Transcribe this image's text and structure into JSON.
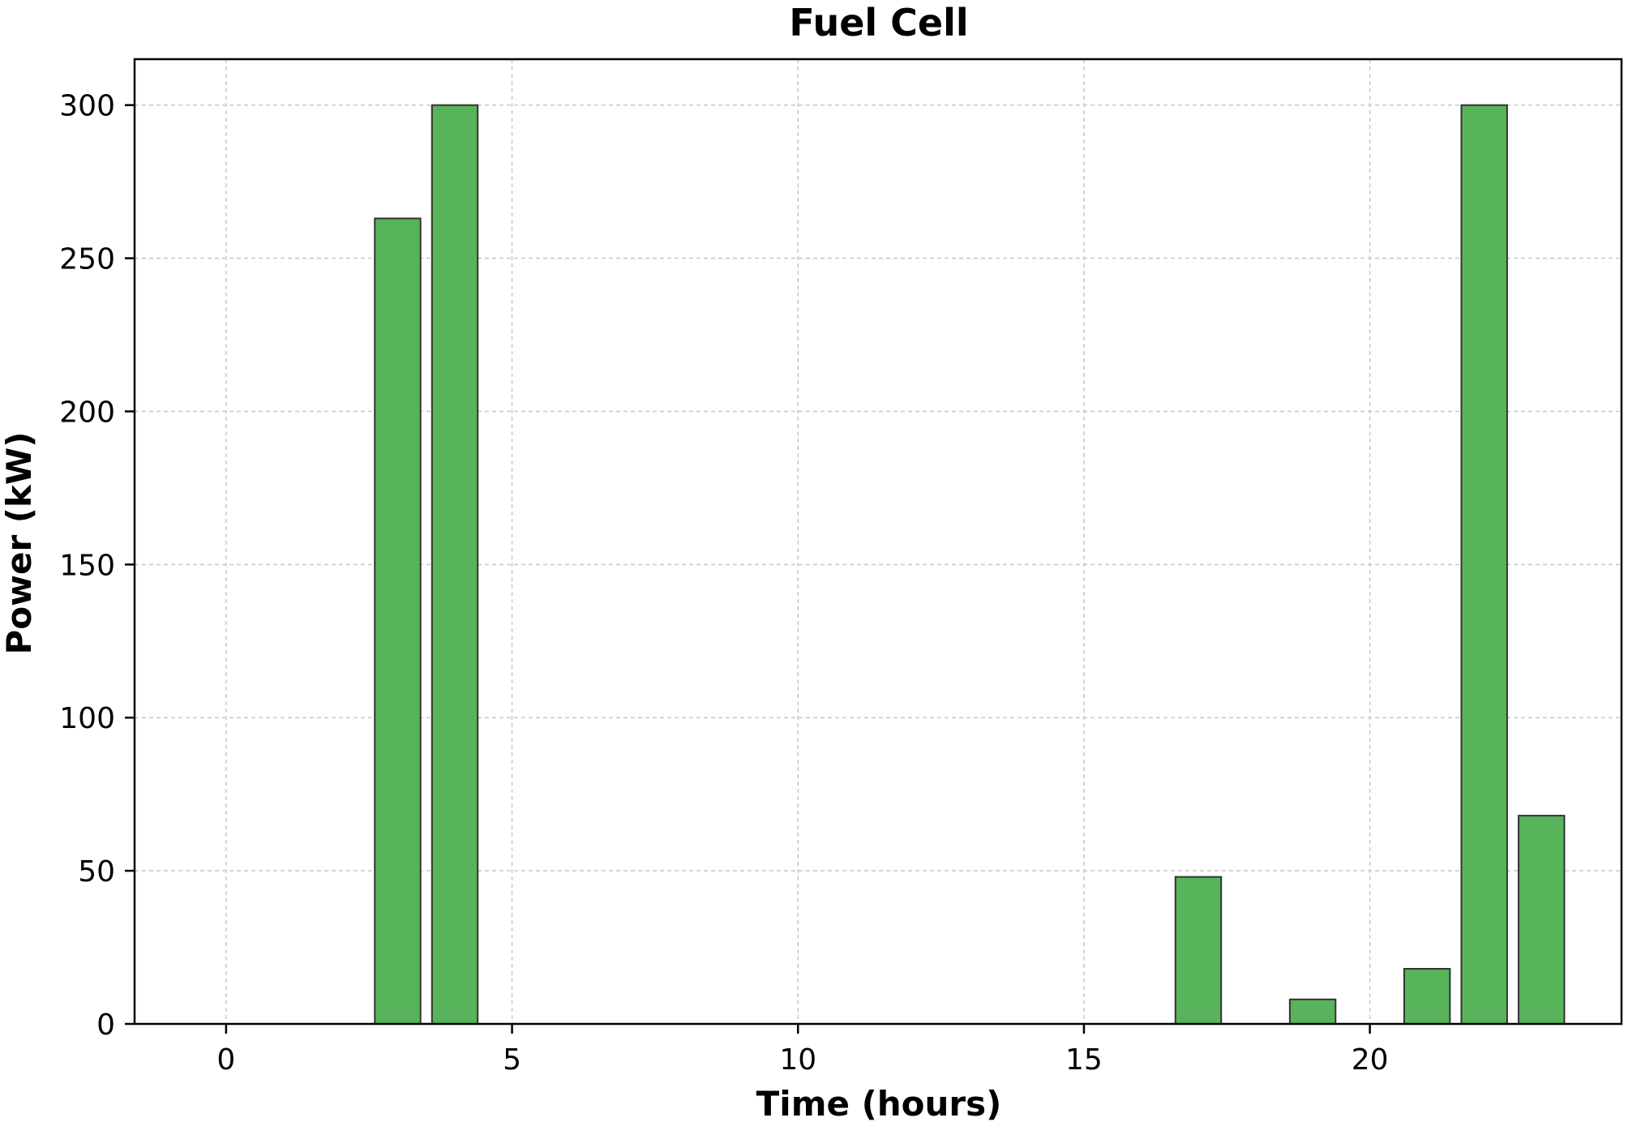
{
  "chart_data": {
    "type": "bar",
    "title": "Fuel Cell",
    "xlabel": "Time (hours)",
    "ylabel": "Power (kW)",
    "x": [
      3,
      4,
      17,
      19,
      21,
      22,
      23
    ],
    "values": [
      263,
      300,
      48,
      8,
      18,
      300,
      68
    ],
    "bar_width": 0.8,
    "xlim": [
      -1.6,
      24.4
    ],
    "ylim": [
      0,
      315
    ],
    "xticks": [
      0,
      5,
      10,
      15,
      20
    ],
    "yticks": [
      0,
      50,
      100,
      150,
      200,
      250,
      300
    ],
    "grid": true,
    "legend": "none",
    "colors": {
      "bar": "#57b45a",
      "edge": "#333333"
    }
  }
}
